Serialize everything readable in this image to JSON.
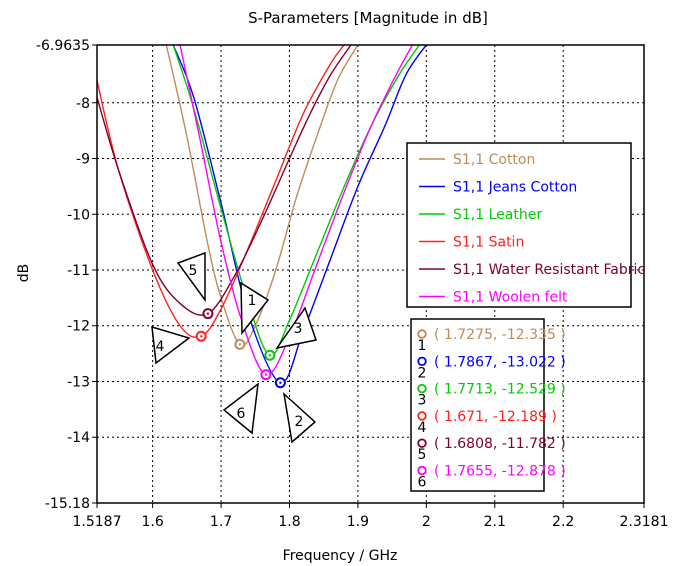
{
  "chart_data": {
    "type": "line",
    "title": "S-Parameters [Magnitude in dB]",
    "xlabel": "Frequency / GHz",
    "ylabel": "dB",
    "xlim": [
      1.5187,
      2.3181
    ],
    "ylim": [
      -15.18,
      -6.9635
    ],
    "x_ticks": [
      "1.5187",
      "1.6",
      "1.7",
      "1.8",
      "1.9",
      "2",
      "2.1",
      "2.2",
      "2.3181"
    ],
    "y_ticks": [
      "-6.9635",
      "-8",
      "-9",
      "-10",
      "-11",
      "-12",
      "-13",
      "-14",
      "-15.18"
    ],
    "grid": true,
    "legend_position": "right",
    "series": [
      {
        "name": "S1,1 Cotton",
        "color": "#c08a5a",
        "x": [
          1.62,
          1.65,
          1.68,
          1.7,
          1.7275,
          1.75,
          1.78,
          1.81,
          1.84,
          1.87,
          1.9
        ],
        "y": [
          -6.96,
          -8.6,
          -10.5,
          -11.5,
          -12.335,
          -12.0,
          -11.0,
          -9.7,
          -8.6,
          -7.6,
          -6.96
        ]
      },
      {
        "name": "S1,1 Jeans Cotton",
        "color": "#0000ff",
        "x": [
          1.63,
          1.66,
          1.7,
          1.74,
          1.7867,
          1.82,
          1.86,
          1.9,
          1.94,
          1.97,
          2.0
        ],
        "y": [
          -6.96,
          -7.9,
          -9.8,
          -11.8,
          -13.022,
          -12.1,
          -10.8,
          -9.5,
          -8.4,
          -7.5,
          -6.96
        ]
      },
      {
        "name": "S1,1 Leather",
        "color": "#00cc00",
        "x": [
          1.63,
          1.66,
          1.7,
          1.74,
          1.7713,
          1.8,
          1.84,
          1.88,
          1.92,
          1.96,
          1.99
        ],
        "y": [
          -6.96,
          -8.1,
          -9.9,
          -11.6,
          -12.529,
          -11.9,
          -10.7,
          -9.5,
          -8.4,
          -7.5,
          -6.96
        ]
      },
      {
        "name": "S1,1 Satin",
        "color": "#ff2020",
        "x": [
          1.5187,
          1.55,
          1.6,
          1.64,
          1.671,
          1.7,
          1.74,
          1.78,
          1.82,
          1.86,
          1.88
        ],
        "y": [
          -7.6,
          -9.2,
          -11.0,
          -12.0,
          -12.189,
          -11.7,
          -10.6,
          -9.4,
          -8.2,
          -7.3,
          -6.96
        ]
      },
      {
        "name": "S1,1 Water Resistant Fabric",
        "color": "#800033",
        "x": [
          1.5187,
          1.55,
          1.6,
          1.64,
          1.6808,
          1.72,
          1.76,
          1.8,
          1.83,
          1.86,
          1.89
        ],
        "y": [
          -7.9,
          -9.2,
          -10.9,
          -11.6,
          -11.782,
          -11.1,
          -10.1,
          -9.0,
          -8.2,
          -7.5,
          -6.96
        ]
      },
      {
        "name": "S1,1 Woolen felt",
        "color": "#ff00ff",
        "x": [
          1.64,
          1.67,
          1.7,
          1.73,
          1.7655,
          1.8,
          1.84,
          1.88,
          1.92,
          1.96,
          1.98
        ],
        "y": [
          -6.96,
          -8.7,
          -10.5,
          -11.9,
          -12.878,
          -12.2,
          -10.9,
          -9.6,
          -8.4,
          -7.4,
          -6.96
        ]
      }
    ],
    "markers": [
      {
        "id": "1",
        "x": 1.7275,
        "y": -12.335,
        "label": "( 1.7275, -12.335 )",
        "color": "#c08a5a"
      },
      {
        "id": "2",
        "x": 1.7867,
        "y": -13.022,
        "label": "( 1.7867, -13.022 )",
        "color": "#0000ff"
      },
      {
        "id": "3",
        "x": 1.7713,
        "y": -12.529,
        "label": "( 1.7713, -12.529 )",
        "color": "#00cc00"
      },
      {
        "id": "4",
        "x": 1.671,
        "y": -12.189,
        "label": "( 1.671, -12.189 )",
        "color": "#ff2020"
      },
      {
        "id": "5",
        "x": 1.6808,
        "y": -11.782,
        "label": "( 1.6808, -11.782 )",
        "color": "#800033"
      },
      {
        "id": "6",
        "x": 1.7655,
        "y": -12.878,
        "label": "( 1.7655, -12.878 )",
        "color": "#ff00ff"
      }
    ]
  }
}
